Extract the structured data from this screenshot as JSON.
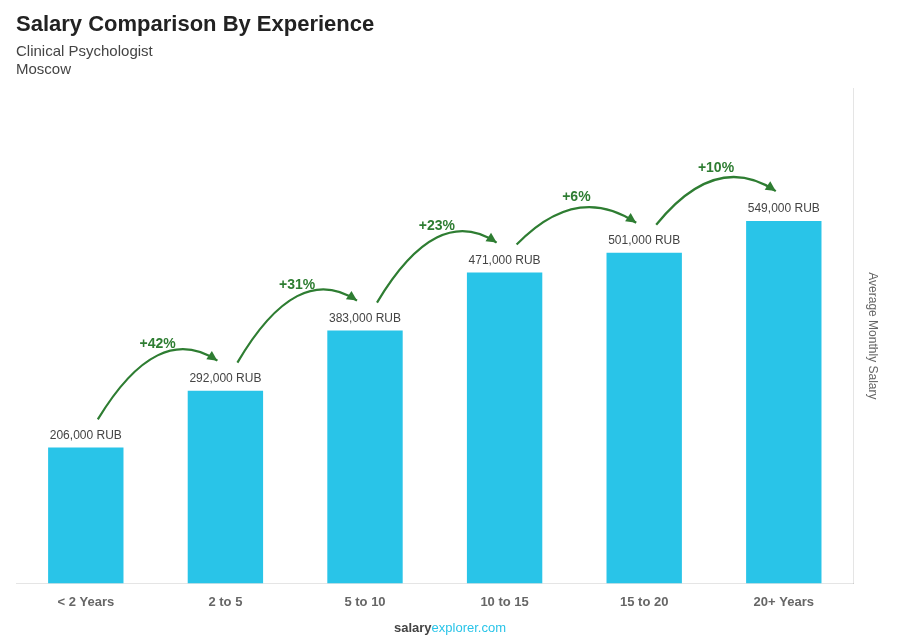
{
  "chart_data": {
    "type": "bar",
    "title": "Salary Comparison By Experience",
    "subtitle": [
      "Clinical Psychologist",
      "Moscow"
    ],
    "categories": [
      "< 2 Years",
      "2 to 5",
      "5 to 10",
      "10 to 15",
      "15 to 20",
      "20+ Years"
    ],
    "values": [
      206000,
      292000,
      383000,
      471000,
      501000,
      549000
    ],
    "value_labels": [
      "206,000 RUB",
      "292,000 RUB",
      "383,000 RUB",
      "471,000 RUB",
      "501,000 RUB",
      "549,000 RUB"
    ],
    "data_labels": true,
    "color": "#29C4E8",
    "ylabel": "Average Monthly Salary",
    "ylim": [
      0,
      750000
    ],
    "yticks": [],
    "tick_labels": "x",
    "grid": false,
    "annotations": [
      "+42%",
      "+31%",
      "+23%",
      "+6%",
      "+10%"
    ],
    "caption": [
      "salary",
      "explorer.com"
    ]
  }
}
